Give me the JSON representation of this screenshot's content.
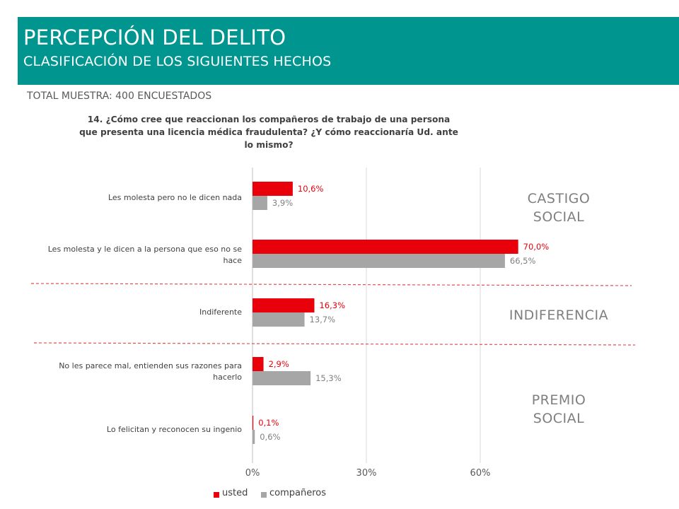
{
  "header": {
    "title": "PERCEPCIÓN DEL DELITO",
    "subtitle": "CLASIFICACIÓN DE LOS SIGUIENTES HECHOS"
  },
  "sample_label": "TOTAL MUESTRA: 400 ENCUESTADOS",
  "question": "14. ¿Cómo cree que reaccionan los compañeros de trabajo de una persona que presenta una licencia médica fraudulenta? ¿Y cómo reaccionaría Ud. ante lo mismo?",
  "zones": {
    "castigo_1": "CASTIGO",
    "castigo_2": "SOCIAL",
    "indiferencia": "INDIFERENCIA",
    "premio_1": "PREMIO",
    "premio_2": "SOCIAL"
  },
  "colors": {
    "header": "#00968f",
    "usted": "#e8000b",
    "companeros": "#a6a6a6",
    "divider": "#e05050"
  },
  "chart_data": {
    "type": "bar",
    "orientation": "horizontal",
    "categories": [
      "Les molesta pero no le dicen nada",
      "Les molesta y le dicen a la persona que eso no se hace",
      "Indiferente",
      "No les parece mal, entienden sus razones para hacerlo",
      "Lo felicitan y reconocen su ingenio"
    ],
    "series": [
      {
        "name": "usted",
        "values": [
          10.6,
          70.0,
          16.3,
          2.9,
          0.1
        ],
        "labels": [
          "10,6%",
          "70,0%",
          "16,3%",
          "2,9%",
          "0,1%"
        ]
      },
      {
        "name": "compañeros",
        "values": [
          3.9,
          66.5,
          13.7,
          15.3,
          0.6
        ],
        "labels": [
          "3,9%",
          "66,5%",
          "13,7%",
          "15,3%",
          "0,6%"
        ]
      }
    ],
    "xticks": [
      "0%",
      "30%",
      "60%"
    ],
    "xtick_values": [
      0,
      30,
      60
    ],
    "xlim": [
      0,
      90
    ],
    "grid": true,
    "legend": "bottom"
  }
}
